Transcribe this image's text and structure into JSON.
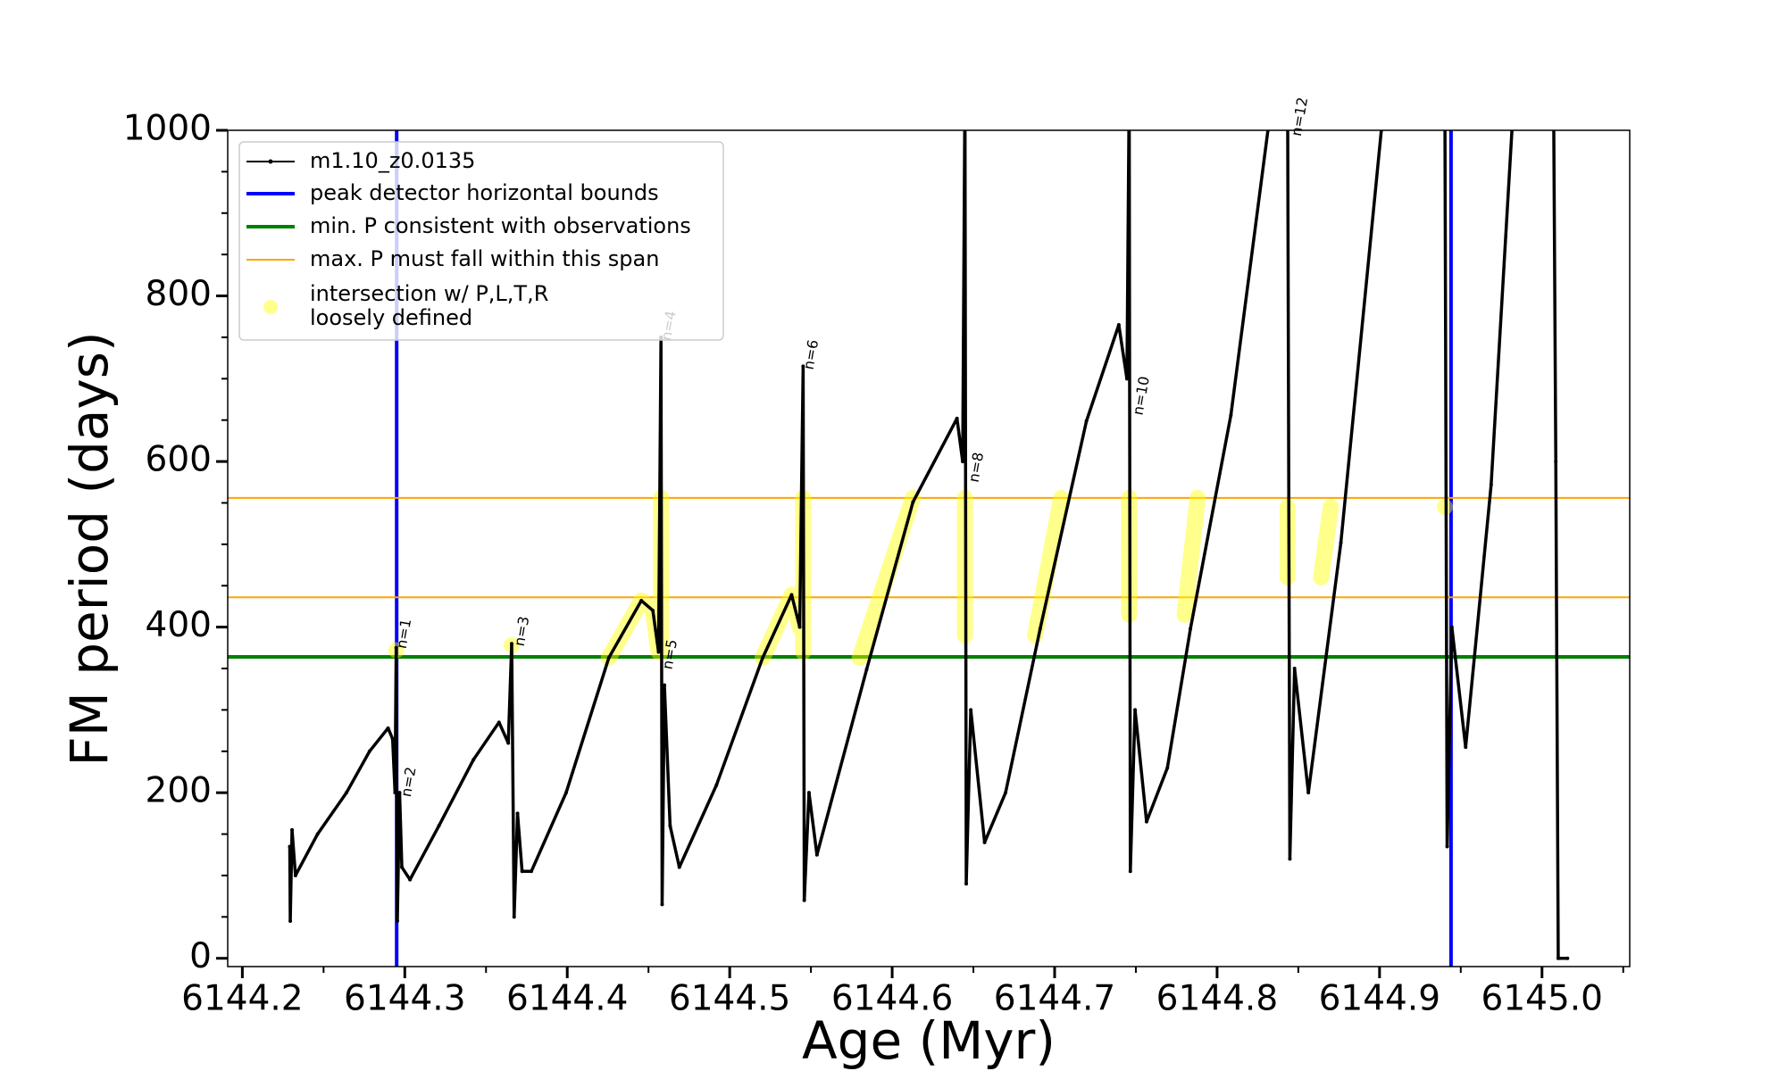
{
  "chart_data": {
    "type": "line",
    "xlabel": "Age (Myr)",
    "ylabel": "FM period (days)",
    "xlim": [
      6144.191,
      6145.054
    ],
    "ylim": [
      -10,
      1000
    ],
    "xticks": [
      6144.2,
      6144.3,
      6144.4,
      6144.5,
      6144.6,
      6144.7,
      6144.8,
      6144.9,
      {
        "value": 6145,
        "label": "6145.0"
      }
    ],
    "yticks": [
      0,
      200,
      400,
      600,
      800,
      1000
    ],
    "xticks_minor": [
      6144.25,
      6144.35,
      6144.45,
      6144.55,
      6144.65,
      6144.75,
      6144.85,
      6144.95,
      6145.05
    ],
    "yticks_minor": [
      50,
      100,
      150,
      250,
      300,
      350,
      450,
      500,
      550,
      650,
      700,
      750,
      850,
      900,
      950
    ],
    "legend": "upper left",
    "series": [
      {
        "name": "m1.10_z0.0135",
        "color": "#000000",
        "x": [
          6144.2292,
          6144.2295,
          6144.2306,
          6144.2327,
          6144.2463,
          6144.2641,
          6144.2783,
          6144.2897,
          6144.2925,
          6144.294,
          6144.2947,
          6144.2954,
          6144.2968,
          6144.2982,
          6144.3032,
          6144.321,
          6144.3423,
          6144.358,
          6144.3637,
          6144.3658,
          6144.3673,
          6144.3694,
          6144.3722,
          6144.3779,
          6144.3993,
          6144.4256,
          6144.4456,
          6144.4527,
          6144.4562,
          6144.4577,
          6144.4584,
          6144.4598,
          6144.4633,
          6144.469,
          6144.4918,
          6144.5203,
          6144.5381,
          6144.5431,
          6144.5452,
          6144.5459,
          6144.5488,
          6144.5537,
          6144.5843,
          6144.6128,
          6144.6399,
          6144.6434,
          6144.6448,
          6144.6456,
          6144.6484,
          6144.6569,
          6144.6698,
          6144.6911,
          6144.7196,
          6144.7395,
          6144.7445,
          6144.7459,
          6144.7466,
          6144.7495,
          6144.7566,
          6144.7694,
          6144.7836,
          6144.8085,
          6144.8313,
          6144.8327,
          6144.8434,
          6144.8448,
          6144.8477,
          6144.8562,
          6144.8762,
          6144.9011,
          6144.9025,
          6144.9402,
          6144.9416,
          6144.9445,
          6144.953,
          6144.9687,
          6144.9815,
          6144.9829,
          6145.0071,
          6145.0085,
          6145.01,
          6145.0157
        ],
        "y": [
          135,
          45,
          155,
          100,
          150,
          200,
          250,
          278,
          265,
          200,
          375,
          45,
          200,
          110,
          95,
          160,
          240,
          285,
          260,
          380,
          50,
          175,
          105,
          105,
          200,
          363,
          432,
          420,
          370,
          750,
          65,
          330,
          160,
          110,
          209,
          363,
          439,
          400,
          715,
          70,
          200,
          125,
          349,
          551,
          652,
          600,
          1050,
          90,
          300,
          140,
          200,
          398,
          649,
          765,
          700,
          1050,
          105,
          300,
          165,
          230,
          398,
          656,
          1000,
          1050,
          1050,
          120,
          350,
          200,
          502,
          1000,
          1050,
          1050,
          135,
          400,
          255,
          572,
          1000,
          1050,
          1050,
          600,
          0,
          0
        ]
      },
      {
        "name": [
          "intersection w/ P,L,T,R",
          "loosely defined"
        ],
        "color": "#ffff00",
        "x": [
          6144.2947,
          null,
          6144.3658,
          null,
          6144.4256,
          6144.4456,
          6144.4527,
          6144.4562,
          null,
          6144.4577,
          6144.4577,
          null,
          6144.5203,
          6144.5381,
          6144.5431,
          null,
          6144.5452,
          6144.5452,
          null,
          6144.58,
          6144.6128,
          null,
          6144.6448,
          6144.6448,
          null,
          6144.688,
          6144.704,
          null,
          6144.7459,
          6144.7459,
          null,
          6144.78,
          6144.788,
          null,
          6144.8434,
          6144.8434,
          null,
          6144.864,
          6144.87,
          null,
          6144.9402
        ],
        "y": [
          372,
          null,
          378,
          null,
          363,
          432,
          420,
          370,
          null,
          370,
          556,
          null,
          363,
          439,
          400,
          null,
          370,
          556,
          null,
          363,
          556,
          null,
          390,
          556,
          null,
          390,
          556,
          null,
          415,
          556,
          null,
          415,
          556,
          null,
          460,
          545,
          null,
          460,
          545,
          null,
          545
        ]
      }
    ],
    "reference_lines": [
      {
        "name": "peak detector horizontal bounds",
        "color": "#0000ff",
        "orientation": "vertical",
        "values": [
          6144.295,
          6144.944
        ]
      },
      {
        "name": "min. P consistent with observations",
        "color": "#008000",
        "orientation": "horizontal",
        "values": [
          364
        ]
      },
      {
        "name": "max. P must fall within this span",
        "color": "#ffa500",
        "orientation": "horizontal",
        "values": [
          436,
          556
        ]
      }
    ],
    "annotations": [
      {
        "text": "n=1",
        "x": 6144.2982,
        "y": 374
      },
      {
        "text": "n=2",
        "x": 6144.3011,
        "y": 195
      },
      {
        "text": "n=3",
        "x": 6144.3708,
        "y": 377
      },
      {
        "text": "n=4",
        "x": 6144.4612,
        "y": 746
      },
      {
        "text": "n=5",
        "x": 6144.4619,
        "y": 349
      },
      {
        "text": "n=6",
        "x": 6144.5488,
        "y": 711
      },
      {
        "text": "n=8",
        "x": 6144.6505,
        "y": 575
      },
      {
        "text": "n=10",
        "x": 6144.7516,
        "y": 656
      },
      {
        "text": "n=12",
        "x": 6144.8491,
        "y": 993
      }
    ]
  }
}
